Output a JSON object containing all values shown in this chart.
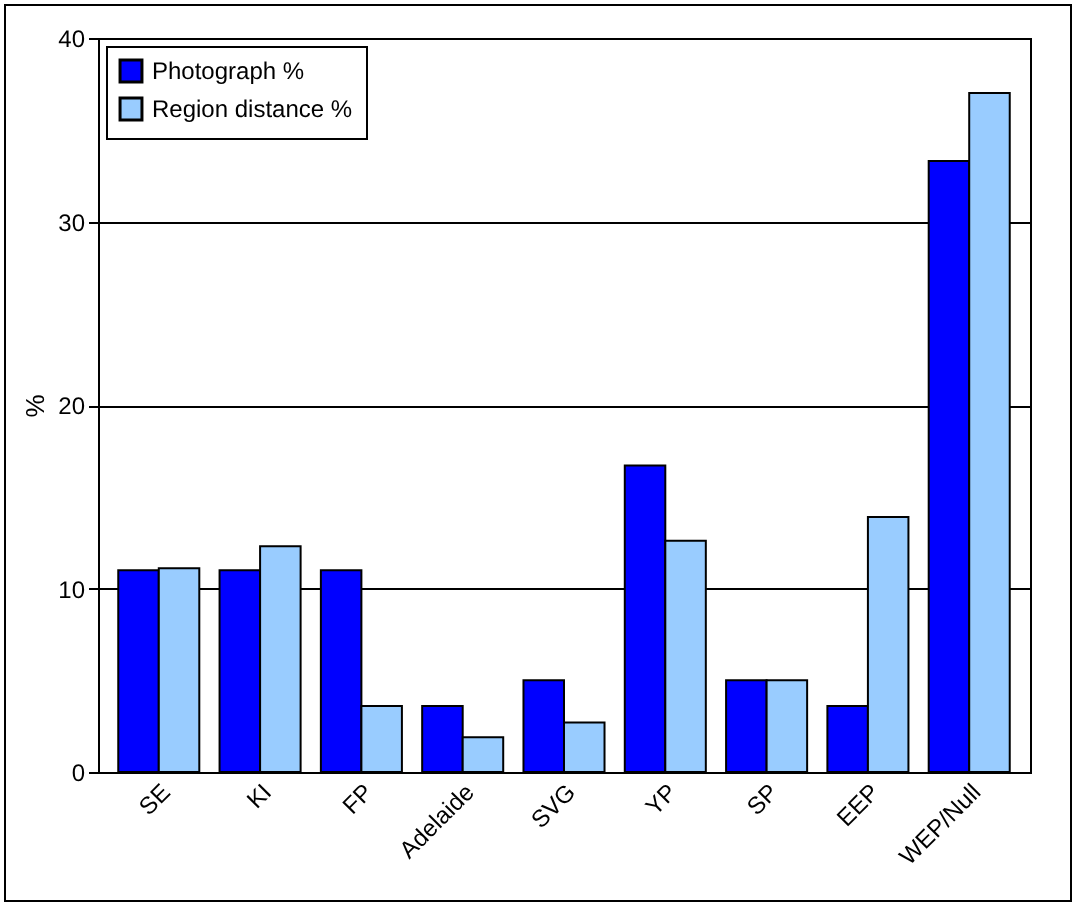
{
  "chart_data": {
    "type": "bar",
    "ylabel": "%",
    "categories": [
      "SE",
      "KI",
      "FP",
      "Adelaide",
      "SVG",
      "YP",
      "SP",
      "EEP",
      "WEP/Null"
    ],
    "series": [
      {
        "name": "Photograph %",
        "color": "#0000ff",
        "values": [
          11.0,
          11.0,
          11.0,
          3.6,
          5.0,
          16.7,
          5.0,
          3.6,
          33.3
        ]
      },
      {
        "name": "Region distance %",
        "color": "#99ccff",
        "values": [
          11.1,
          12.3,
          3.6,
          1.9,
          2.7,
          12.6,
          5.0,
          13.9,
          37.0
        ]
      }
    ],
    "ylim": [
      0,
      40
    ],
    "yticks": [
      0,
      10,
      20,
      30,
      40
    ],
    "grid": "y",
    "legend": "top left"
  }
}
